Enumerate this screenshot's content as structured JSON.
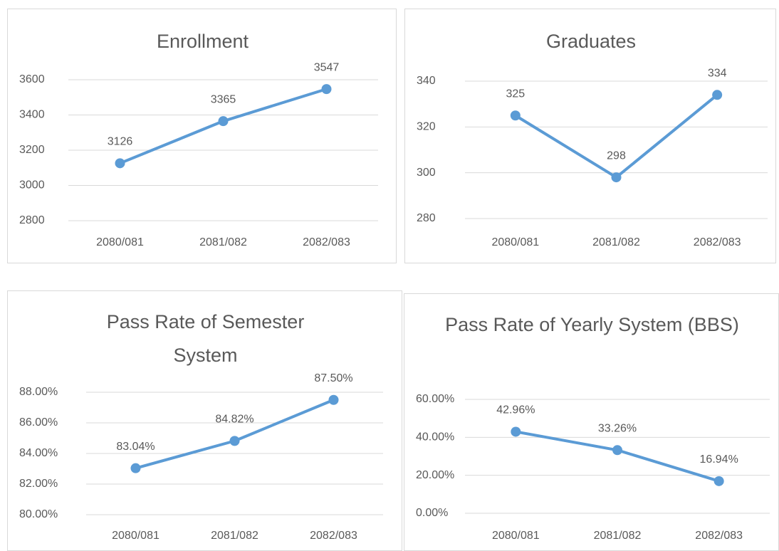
{
  "chart_data": [
    {
      "type": "line",
      "title": "Enrollment",
      "categories": [
        "2080/081",
        "2081/082",
        "2082/083"
      ],
      "values": [
        3126,
        3365,
        3547
      ],
      "color": "#5b9bd5",
      "ylim": [
        2800,
        3600
      ],
      "yticks": [
        2800,
        3000,
        3200,
        3400,
        3600
      ],
      "grid": true
    },
    {
      "type": "line",
      "title": "Graduates",
      "categories": [
        "2080/081",
        "2081/082",
        "2082/083"
      ],
      "values": [
        325,
        298,
        334
      ],
      "color": "#5b9bd5",
      "ylim": [
        280,
        340
      ],
      "yticks": [
        280,
        300,
        320,
        340
      ],
      "grid": true
    },
    {
      "type": "line",
      "title": "Pass Rate of Semester System",
      "categories": [
        "2080/081",
        "2081/082",
        "2082/083"
      ],
      "values": [
        83.04,
        84.82,
        87.5
      ],
      "value_labels": [
        "83.04%",
        "84.82%",
        "87.50%"
      ],
      "color": "#5b9bd5",
      "ylim": [
        80,
        88
      ],
      "yticks": [
        {
          "value": 80,
          "label": "80.00%"
        },
        {
          "value": 82,
          "label": "82.00%"
        },
        {
          "value": 84,
          "label": "84.00%"
        },
        {
          "value": 86,
          "label": "86.00%"
        },
        {
          "value": 88,
          "label": "88.00%"
        }
      ],
      "grid": true
    },
    {
      "type": "line",
      "title": "Pass Rate of Yearly System (BBS)",
      "categories": [
        "2080/081",
        "2081/082",
        "2082/083"
      ],
      "values": [
        42.96,
        33.26,
        16.94
      ],
      "value_labels": [
        "42.96%",
        "33.26%",
        "16.94%"
      ],
      "color": "#5b9bd5",
      "ylim": [
        0,
        60
      ],
      "yticks": [
        {
          "value": 0,
          "label": "0.00%"
        },
        {
          "value": 20,
          "label": "20.00%"
        },
        {
          "value": 40,
          "label": "40.00%"
        },
        {
          "value": 60,
          "label": "60.00%"
        }
      ],
      "grid": true
    }
  ]
}
